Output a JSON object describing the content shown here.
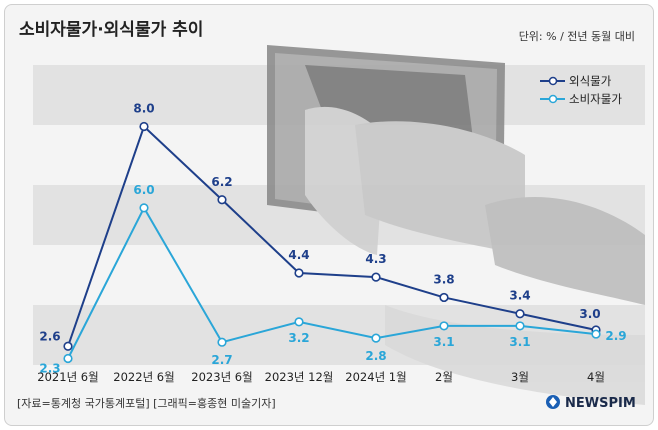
{
  "header": {
    "title": "소비자물가·외식물가 추이",
    "unit": "단위: % / 전년 동월 대비"
  },
  "footer": {
    "source": "[자료=통계청 국가통계포털] [그래픽=홍종현 미술기자]",
    "logo_text": "NEWSPIM"
  },
  "chart_data": {
    "type": "line",
    "categories": [
      "2021년 6월",
      "2022년 6월",
      "2023년 6월",
      "2023년 12월",
      "2024년 1월",
      "2월",
      "3월",
      "4월"
    ],
    "series": [
      {
        "name": "외식물가",
        "values": [
          2.6,
          8.0,
          6.2,
          4.4,
          4.3,
          3.8,
          3.4,
          3.0
        ],
        "color": "#1e3f8a"
      },
      {
        "name": "소비자물가",
        "values": [
          2.3,
          6.0,
          2.7,
          3.2,
          2.8,
          3.1,
          3.1,
          2.9
        ],
        "color": "#2aa6d8"
      }
    ],
    "ylim": [
      2.0,
      8.5
    ],
    "legend": "top-right",
    "grid": "horizontal bands"
  },
  "icons": [
    "wallet-hand-illustration",
    "newspim-logo-icon"
  ]
}
